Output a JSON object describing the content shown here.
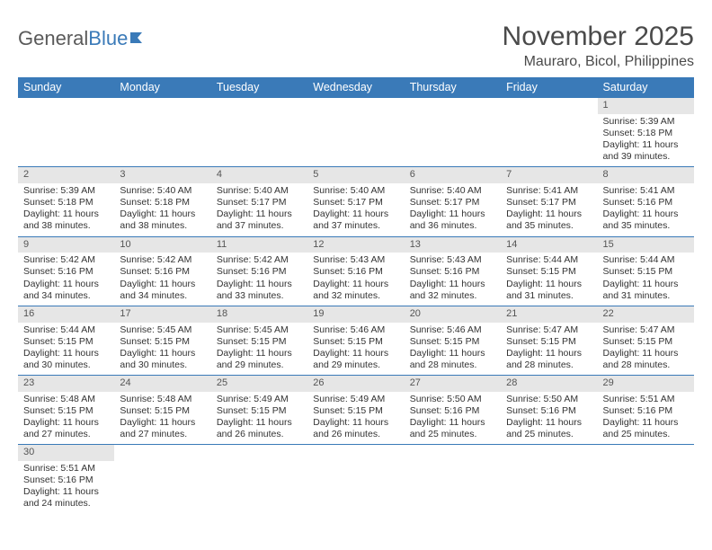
{
  "logo": {
    "text1": "General",
    "text2": "Blue"
  },
  "title": "November 2025",
  "location": "Mauraro, Bicol, Philippines",
  "colors": {
    "header_bg": "#3a7ab8",
    "daynum_bg": "#e6e6e6",
    "text": "#333333",
    "title_text": "#4a4a4a",
    "rule": "#3a7ab8"
  },
  "day_names": [
    "Sunday",
    "Monday",
    "Tuesday",
    "Wednesday",
    "Thursday",
    "Friday",
    "Saturday"
  ],
  "weeks": [
    [
      null,
      null,
      null,
      null,
      null,
      null,
      {
        "n": "1",
        "sr": "5:39 AM",
        "ss": "5:18 PM",
        "dl": "11 hours and 39 minutes."
      }
    ],
    [
      {
        "n": "2",
        "sr": "5:39 AM",
        "ss": "5:18 PM",
        "dl": "11 hours and 38 minutes."
      },
      {
        "n": "3",
        "sr": "5:40 AM",
        "ss": "5:18 PM",
        "dl": "11 hours and 38 minutes."
      },
      {
        "n": "4",
        "sr": "5:40 AM",
        "ss": "5:17 PM",
        "dl": "11 hours and 37 minutes."
      },
      {
        "n": "5",
        "sr": "5:40 AM",
        "ss": "5:17 PM",
        "dl": "11 hours and 37 minutes."
      },
      {
        "n": "6",
        "sr": "5:40 AM",
        "ss": "5:17 PM",
        "dl": "11 hours and 36 minutes."
      },
      {
        "n": "7",
        "sr": "5:41 AM",
        "ss": "5:17 PM",
        "dl": "11 hours and 35 minutes."
      },
      {
        "n": "8",
        "sr": "5:41 AM",
        "ss": "5:16 PM",
        "dl": "11 hours and 35 minutes."
      }
    ],
    [
      {
        "n": "9",
        "sr": "5:42 AM",
        "ss": "5:16 PM",
        "dl": "11 hours and 34 minutes."
      },
      {
        "n": "10",
        "sr": "5:42 AM",
        "ss": "5:16 PM",
        "dl": "11 hours and 34 minutes."
      },
      {
        "n": "11",
        "sr": "5:42 AM",
        "ss": "5:16 PM",
        "dl": "11 hours and 33 minutes."
      },
      {
        "n": "12",
        "sr": "5:43 AM",
        "ss": "5:16 PM",
        "dl": "11 hours and 32 minutes."
      },
      {
        "n": "13",
        "sr": "5:43 AM",
        "ss": "5:16 PM",
        "dl": "11 hours and 32 minutes."
      },
      {
        "n": "14",
        "sr": "5:44 AM",
        "ss": "5:15 PM",
        "dl": "11 hours and 31 minutes."
      },
      {
        "n": "15",
        "sr": "5:44 AM",
        "ss": "5:15 PM",
        "dl": "11 hours and 31 minutes."
      }
    ],
    [
      {
        "n": "16",
        "sr": "5:44 AM",
        "ss": "5:15 PM",
        "dl": "11 hours and 30 minutes."
      },
      {
        "n": "17",
        "sr": "5:45 AM",
        "ss": "5:15 PM",
        "dl": "11 hours and 30 minutes."
      },
      {
        "n": "18",
        "sr": "5:45 AM",
        "ss": "5:15 PM",
        "dl": "11 hours and 29 minutes."
      },
      {
        "n": "19",
        "sr": "5:46 AM",
        "ss": "5:15 PM",
        "dl": "11 hours and 29 minutes."
      },
      {
        "n": "20",
        "sr": "5:46 AM",
        "ss": "5:15 PM",
        "dl": "11 hours and 28 minutes."
      },
      {
        "n": "21",
        "sr": "5:47 AM",
        "ss": "5:15 PM",
        "dl": "11 hours and 28 minutes."
      },
      {
        "n": "22",
        "sr": "5:47 AM",
        "ss": "5:15 PM",
        "dl": "11 hours and 28 minutes."
      }
    ],
    [
      {
        "n": "23",
        "sr": "5:48 AM",
        "ss": "5:15 PM",
        "dl": "11 hours and 27 minutes."
      },
      {
        "n": "24",
        "sr": "5:48 AM",
        "ss": "5:15 PM",
        "dl": "11 hours and 27 minutes."
      },
      {
        "n": "25",
        "sr": "5:49 AM",
        "ss": "5:15 PM",
        "dl": "11 hours and 26 minutes."
      },
      {
        "n": "26",
        "sr": "5:49 AM",
        "ss": "5:15 PM",
        "dl": "11 hours and 26 minutes."
      },
      {
        "n": "27",
        "sr": "5:50 AM",
        "ss": "5:16 PM",
        "dl": "11 hours and 25 minutes."
      },
      {
        "n": "28",
        "sr": "5:50 AM",
        "ss": "5:16 PM",
        "dl": "11 hours and 25 minutes."
      },
      {
        "n": "29",
        "sr": "5:51 AM",
        "ss": "5:16 PM",
        "dl": "11 hours and 25 minutes."
      }
    ],
    [
      {
        "n": "30",
        "sr": "5:51 AM",
        "ss": "5:16 PM",
        "dl": "11 hours and 24 minutes."
      },
      null,
      null,
      null,
      null,
      null,
      null
    ]
  ],
  "labels": {
    "sunrise": "Sunrise: ",
    "sunset": "Sunset: ",
    "daylight": "Daylight: "
  }
}
